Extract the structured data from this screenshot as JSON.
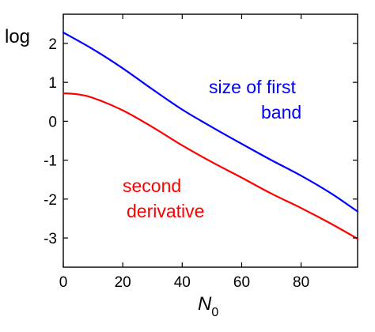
{
  "chart_data": {
    "type": "line",
    "ylabel": "log",
    "xlabel_main": "N",
    "xlabel_sub": "0",
    "xlim": [
      0,
      99
    ],
    "ylim": [
      -3.75,
      2.75
    ],
    "x_ticks": [
      0,
      20,
      40,
      60,
      80
    ],
    "x_tick_labels": [
      "0",
      "20",
      "40",
      "60",
      "80"
    ],
    "y_ticks": [
      2,
      1,
      0,
      -1,
      -2,
      -3
    ],
    "y_tick_labels": [
      "2",
      "1",
      "0",
      "-1",
      "-2",
      "-3"
    ],
    "grid": false,
    "series": [
      {
        "name": "size of first band",
        "color": "#0000ff",
        "x": [
          0,
          10,
          20,
          30,
          40,
          50,
          60,
          70,
          80,
          90,
          99
        ],
        "y": [
          2.28,
          1.85,
          1.36,
          0.82,
          0.3,
          -0.15,
          -0.58,
          -1.0,
          -1.4,
          -1.85,
          -2.32
        ]
      },
      {
        "name": "second derivative",
        "color": "#ff0000",
        "x": [
          0,
          5,
          10,
          20,
          30,
          40,
          50,
          60,
          70,
          80,
          90,
          99
        ],
        "y": [
          0.72,
          0.69,
          0.6,
          0.28,
          -0.15,
          -0.62,
          -1.05,
          -1.45,
          -1.86,
          -2.23,
          -2.63,
          -3.02
        ]
      }
    ],
    "annotations": [
      {
        "lines": [
          "size of first",
          "band"
        ],
        "color": "#0000ff",
        "series": "size of first band"
      },
      {
        "lines": [
          "second",
          "derivative"
        ],
        "color": "#ff0000",
        "series": "second derivative"
      }
    ]
  }
}
